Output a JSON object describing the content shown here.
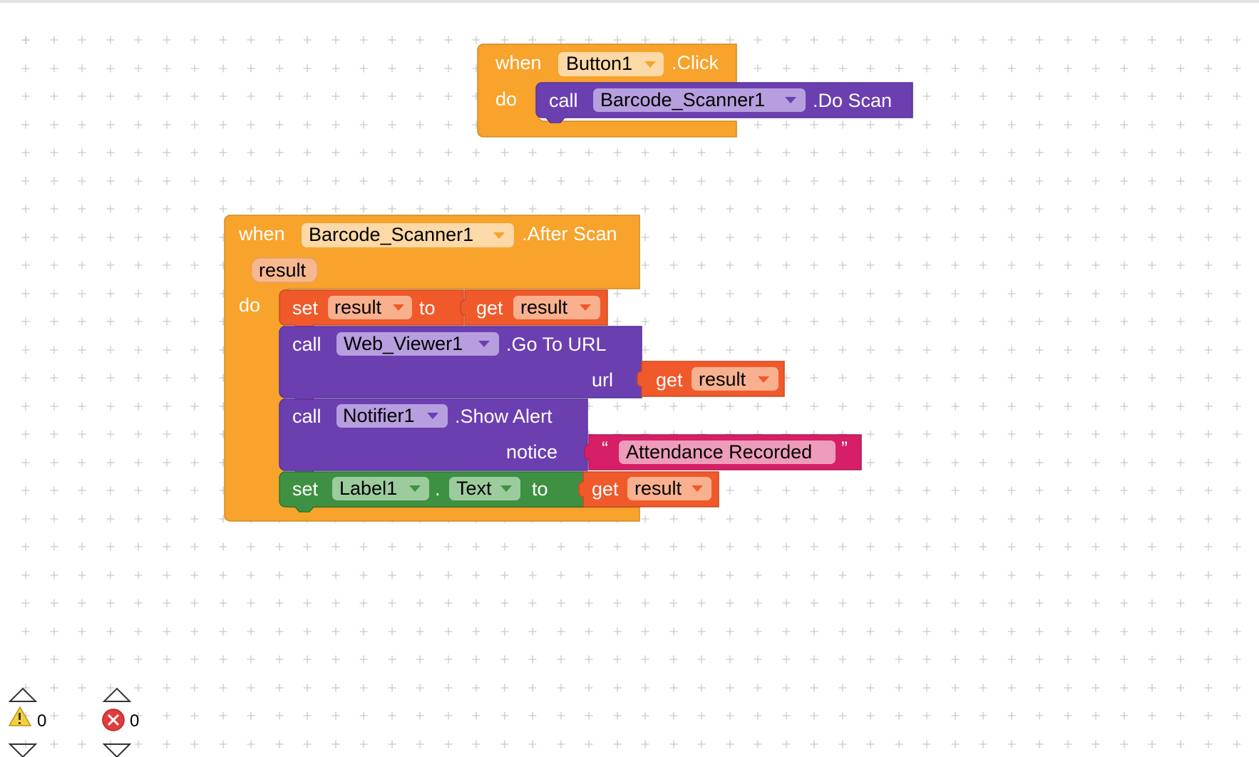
{
  "colors": {
    "event": "#F7A32C",
    "event_dark": "#D08A22",
    "component": "#6B3FB0",
    "component_dark": "#57329A",
    "variable": "#F0592A",
    "variable_dark": "#C94A22",
    "text": "#D61F66",
    "text_dark": "#B0185A",
    "setter": "#3E9142",
    "setter_dark": "#2F7533",
    "grid": "#C9C9C9"
  },
  "block1": {
    "when": "when",
    "component": "Button1",
    "event": ".Click",
    "do": "do",
    "call": {
      "call": "call",
      "component": "Barcode_Scanner1",
      "method": ".Do Scan"
    }
  },
  "block2": {
    "when": "when",
    "component": "Barcode_Scanner1",
    "event": ".After Scan",
    "param": "result",
    "do": "do",
    "set_var": {
      "set": "set",
      "var": "result",
      "to": "to",
      "get": "get",
      "get_var": "result"
    },
    "webview": {
      "call": "call",
      "component": "Web_Viewer1",
      "method": ".Go To URL",
      "arg_label": "url",
      "get": "get",
      "get_var": "result"
    },
    "notifier": {
      "call": "call",
      "component": "Notifier1",
      "method": ".Show Alert",
      "arg_label": "notice",
      "open_quote": "“",
      "string": "Attendance Recorded",
      "close_quote": "”"
    },
    "label_set": {
      "set": "set",
      "component": "Label1",
      "dot": ".",
      "property": "Text",
      "to": "to",
      "get": "get",
      "get_var": "result"
    }
  },
  "status": {
    "warnings_count": "0",
    "errors_count": "0",
    "warning_icon": "warning-triangle-icon",
    "error_icon": "error-circle-icon"
  }
}
